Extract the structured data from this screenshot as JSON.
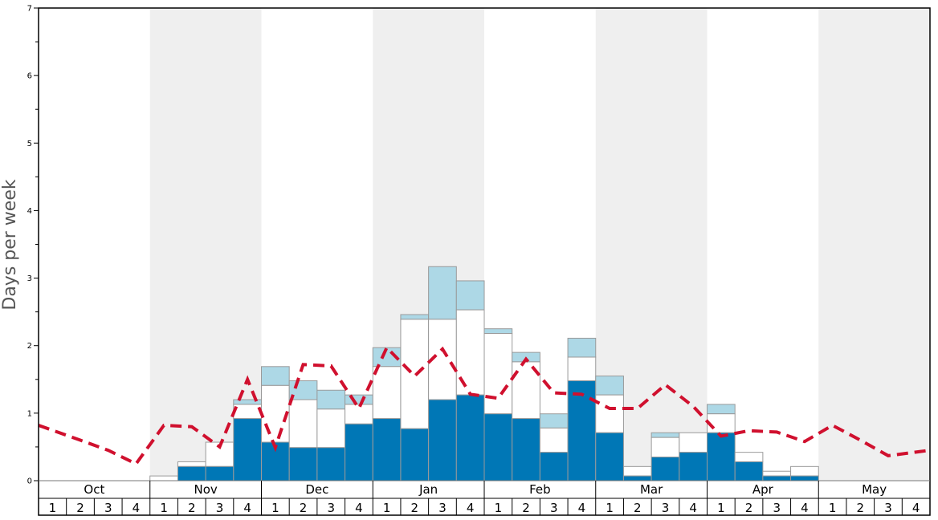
{
  "chart_data": {
    "type": "bar",
    "ylabel": "Days per week",
    "ylim": [
      0,
      7
    ],
    "yticks": [
      "0",
      "1",
      "2",
      "3",
      "4",
      "5",
      "6",
      "7"
    ],
    "months": [
      "Oct",
      "Nov",
      "Dec",
      "Jan",
      "Feb",
      "Mar",
      "Apr",
      "May"
    ],
    "week_labels": [
      "1",
      "2",
      "3",
      "4"
    ],
    "colors": {
      "dark_blue": "#0077b6",
      "light_blue": "#add8e6",
      "white": "#ffffff",
      "red_line": "#d0102e",
      "shade": "#efefef",
      "bar_stroke": "#9a9a9a"
    },
    "series": [
      {
        "role": "dark_blue_segment",
        "values": [
          0,
          0,
          0,
          0,
          0,
          0.21,
          0.21,
          0.92,
          0.57,
          0.49,
          0.49,
          0.84,
          0.92,
          0.77,
          1.2,
          1.27,
          0.99,
          0.92,
          0.42,
          1.48,
          0.71,
          0.07,
          0.35,
          0.42,
          0.71,
          0.28,
          0.07,
          0.07,
          0,
          0,
          0,
          0
        ]
      },
      {
        "role": "white_segment_top",
        "values": [
          0,
          0,
          0,
          0,
          0.07,
          0.28,
          0.57,
          1.13,
          1.41,
          1.2,
          1.06,
          1.13,
          1.69,
          2.39,
          2.39,
          2.53,
          2.18,
          1.76,
          0.78,
          1.83,
          1.27,
          0.21,
          0.64,
          0.71,
          0.99,
          0.42,
          0.14,
          0.21,
          0,
          0,
          0,
          0
        ]
      },
      {
        "role": "light_blue_segment_top",
        "values": [
          0,
          0,
          0,
          0,
          0.07,
          0.28,
          0.57,
          1.2,
          1.69,
          1.48,
          1.34,
          1.27,
          1.97,
          2.46,
          3.17,
          2.96,
          2.25,
          1.9,
          0.99,
          2.11,
          1.55,
          0.21,
          0.71,
          0.71,
          1.13,
          0.42,
          0.14,
          0.21,
          0,
          0,
          0,
          0
        ]
      },
      {
        "role": "dashed_line",
        "values": [
          0.82,
          0.6,
          0.45,
          0.25,
          0.82,
          0.8,
          0.5,
          1.5,
          0.49,
          1.72,
          1.7,
          1.07,
          1.97,
          1.55,
          1.95,
          1.28,
          1.22,
          1.8,
          1.3,
          1.28,
          1.07,
          1.07,
          1.42,
          1.1,
          0.66,
          0.74,
          0.72,
          0.58,
          0.82,
          0.6,
          0.37,
          0.45
        ]
      }
    ],
    "shaded_months": [
      "Nov",
      "Jan",
      "Mar",
      "May"
    ]
  }
}
